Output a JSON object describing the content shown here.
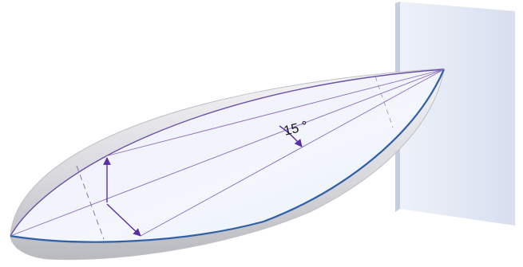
{
  "diagram": {
    "angle_label": "15 °",
    "colors": {
      "screen_face": "#dfe6f3",
      "screen_edge": "#c5cde0",
      "shell_grey": "#cfcfd3",
      "inner_face": "#eef2fa",
      "rim_purple": "#6b4ea8",
      "rim_blue": "#2f5fa8",
      "arrow": "#5a2ea6",
      "guide": "#8a6bbf"
    }
  }
}
